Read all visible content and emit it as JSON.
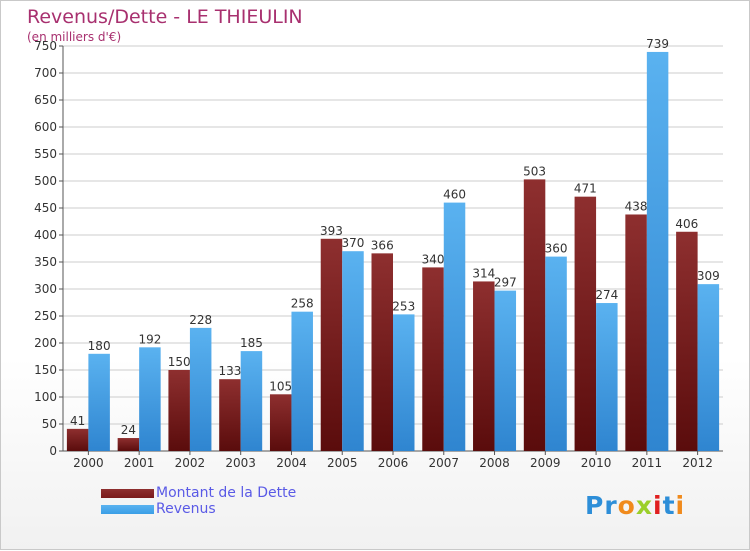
{
  "header": {
    "title": "Revenus/Dette - LE THIEULIN",
    "subtitle": "(en milliers d'€)"
  },
  "chart_data": {
    "type": "bar",
    "categories": [
      "2000",
      "2001",
      "2002",
      "2003",
      "2004",
      "2005",
      "2006",
      "2007",
      "2008",
      "2009",
      "2010",
      "2011",
      "2012"
    ],
    "series": [
      {
        "name": "Montant de la Dette",
        "color": "#7a1a1a",
        "values": [
          41,
          24,
          150,
          133,
          105,
          393,
          366,
          340,
          314,
          503,
          471,
          438,
          406
        ]
      },
      {
        "name": "Revenus",
        "color": "#3a9ee6",
        "values": [
          180,
          192,
          228,
          185,
          258,
          370,
          253,
          460,
          297,
          360,
          274,
          739,
          309
        ]
      }
    ],
    "ylim": [
      0,
      750
    ],
    "yticks": [
      0,
      50,
      100,
      150,
      200,
      250,
      300,
      350,
      400,
      450,
      500,
      550,
      600,
      650,
      700,
      750
    ],
    "grid": true,
    "legend_position": "bottom-left"
  },
  "logo": {
    "text": "Proxiti",
    "letter_colors": [
      "#2d8ed8",
      "#2d8ed8",
      "#f08a1c",
      "#9bcf2a",
      "#e02020",
      "#2d8ed8",
      "#f08a1c"
    ]
  }
}
